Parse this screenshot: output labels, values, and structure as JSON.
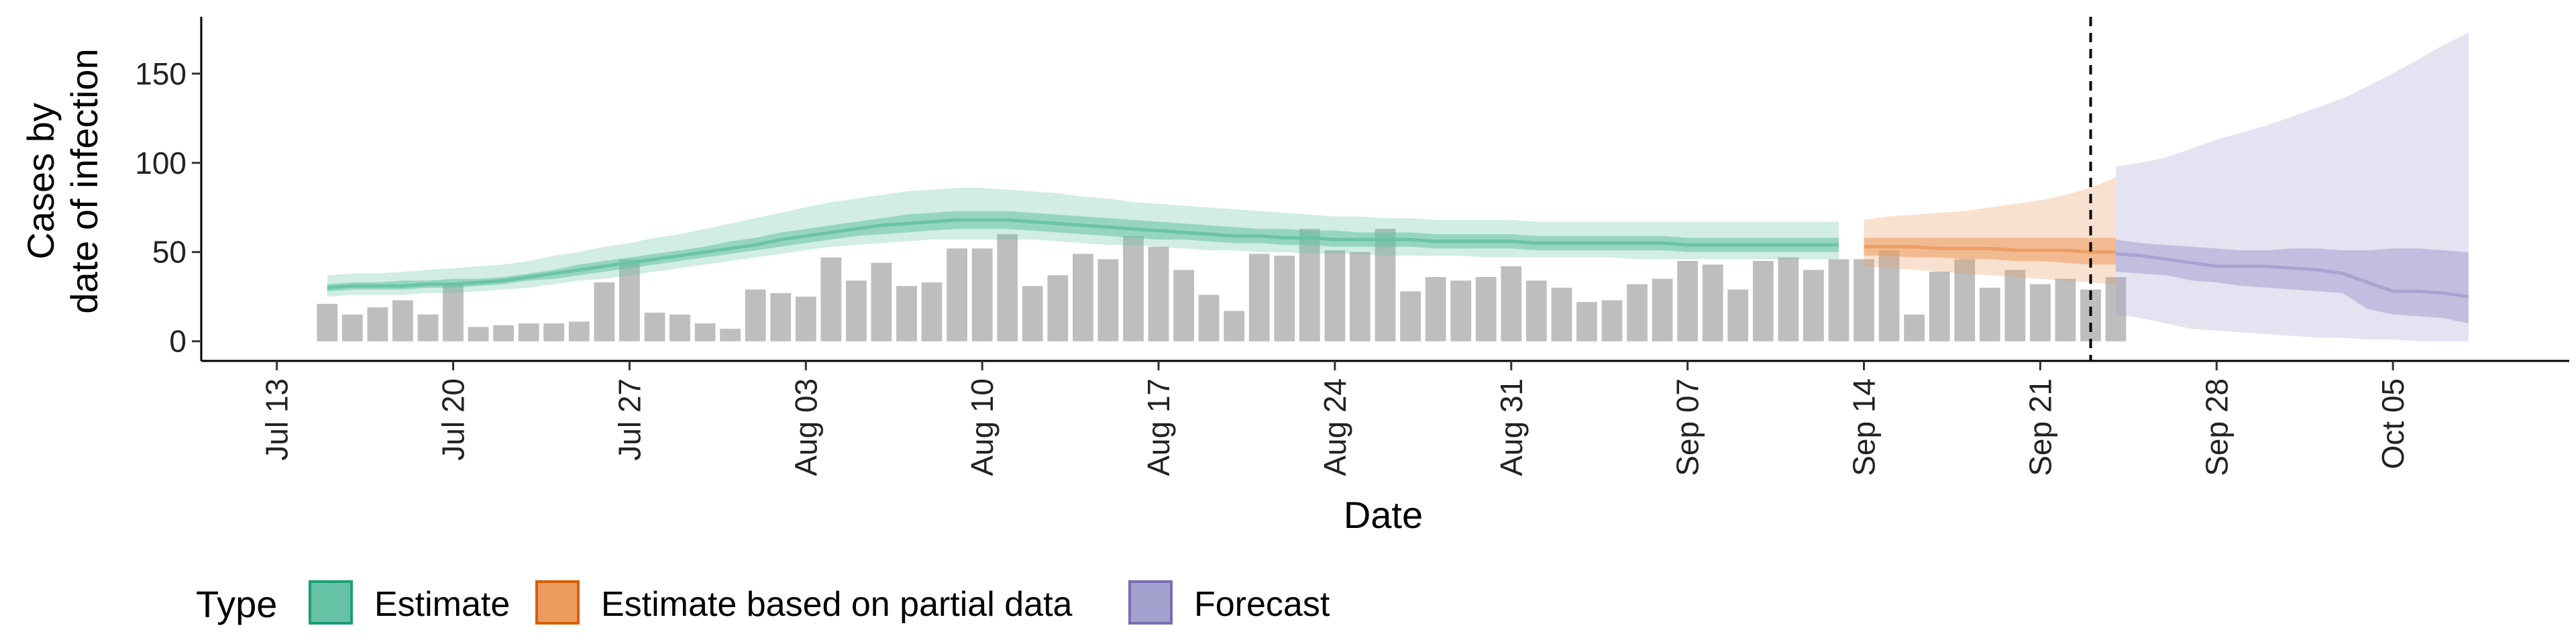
{
  "chart_data": {
    "type": "area",
    "title": "",
    "xlabel": "Date",
    "ylabel_lines": [
      "Cases by",
      "date of infection"
    ],
    "x_range": [
      "2020-07-10",
      "2020-10-12"
    ],
    "ylim": [
      -8,
      180
    ],
    "y_ticks": [
      0,
      50,
      100,
      150
    ],
    "x_ticks": [
      {
        "date": "2020-07-13",
        "label": "Jul 13"
      },
      {
        "date": "2020-07-20",
        "label": "Jul 20"
      },
      {
        "date": "2020-07-27",
        "label": "Jul 27"
      },
      {
        "date": "2020-08-03",
        "label": "Aug 03"
      },
      {
        "date": "2020-08-10",
        "label": "Aug 10"
      },
      {
        "date": "2020-08-17",
        "label": "Aug 17"
      },
      {
        "date": "2020-08-24",
        "label": "Aug 24"
      },
      {
        "date": "2020-08-31",
        "label": "Aug 31"
      },
      {
        "date": "2020-09-07",
        "label": "Sep 07"
      },
      {
        "date": "2020-09-14",
        "label": "Sep 14"
      },
      {
        "date": "2020-09-21",
        "label": "Sep 21"
      },
      {
        "date": "2020-09-28",
        "label": "Sep 28"
      },
      {
        "date": "2020-10-05",
        "label": "Oct 05"
      }
    ],
    "grid": false,
    "vline_date": "2020-09-23",
    "bars": {
      "color": "#bebebe",
      "start_date": "2020-07-15",
      "values": [
        21,
        15,
        19,
        23,
        15,
        32,
        8,
        9,
        10,
        10,
        11,
        33,
        46,
        16,
        15,
        10,
        7,
        29,
        27,
        25,
        47,
        34,
        44,
        31,
        33,
        52,
        52,
        60,
        31,
        37,
        49,
        46,
        59,
        53,
        40,
        26,
        17,
        49,
        48,
        63,
        51,
        50,
        63,
        28,
        36,
        34,
        36,
        42,
        34,
        30,
        22,
        23,
        32,
        35,
        45,
        43,
        29,
        45,
        47,
        40,
        46,
        46,
        51,
        15,
        39,
        46,
        30,
        40,
        32,
        35,
        29,
        36
      ]
    },
    "series": [
      {
        "name": "Estimate",
        "color": "#1b9e77",
        "band_color": "#66c2a4",
        "start_date": "2020-07-15",
        "median": [
          30,
          31,
          31,
          31,
          32,
          32,
          33,
          34,
          36,
          38,
          40,
          42,
          44,
          46,
          48,
          50,
          52,
          54,
          57,
          59,
          61,
          63,
          65,
          66,
          67,
          68,
          68,
          68,
          67,
          66,
          65,
          64,
          63,
          62,
          61,
          60,
          59,
          59,
          58,
          58,
          57,
          57,
          57,
          57,
          56,
          56,
          56,
          56,
          55,
          55,
          55,
          55,
          55,
          55,
          54,
          54,
          54,
          54,
          54,
          54,
          54
        ],
        "inner_lower": [
          28,
          29,
          29,
          29,
          30,
          30,
          31,
          32,
          34,
          35,
          37,
          39,
          41,
          43,
          45,
          47,
          49,
          51,
          53,
          55,
          57,
          59,
          60,
          61,
          62,
          63,
          63,
          63,
          62,
          61,
          60,
          59,
          58,
          57,
          57,
          56,
          55,
          55,
          54,
          54,
          53,
          53,
          53,
          53,
          52,
          52,
          52,
          52,
          51,
          51,
          51,
          51,
          51,
          51,
          50,
          50,
          50,
          50,
          50,
          50,
          50
        ],
        "inner_upper": [
          32,
          33,
          33,
          34,
          34,
          35,
          35,
          36,
          38,
          40,
          43,
          45,
          47,
          49,
          51,
          53,
          56,
          58,
          61,
          63,
          65,
          67,
          69,
          71,
          72,
          73,
          73,
          73,
          72,
          71,
          70,
          69,
          68,
          67,
          66,
          65,
          64,
          63,
          63,
          62,
          62,
          61,
          61,
          61,
          60,
          60,
          60,
          60,
          59,
          59,
          59,
          59,
          59,
          59,
          58,
          58,
          58,
          58,
          58,
          58,
          58
        ],
        "outer_lower": [
          25,
          26,
          26,
          26,
          27,
          27,
          28,
          29,
          30,
          32,
          34,
          35,
          37,
          39,
          41,
          43,
          45,
          47,
          49,
          51,
          53,
          54,
          55,
          56,
          57,
          57,
          57,
          57,
          57,
          56,
          55,
          54,
          54,
          53,
          52,
          51,
          51,
          50,
          50,
          49,
          49,
          49,
          48,
          48,
          48,
          48,
          47,
          47,
          47,
          47,
          47,
          47,
          46,
          46,
          46,
          46,
          46,
          46,
          46,
          46,
          46
        ],
        "outer_upper": [
          37,
          38,
          38,
          39,
          40,
          41,
          42,
          43,
          45,
          48,
          50,
          53,
          55,
          58,
          60,
          63,
          66,
          69,
          72,
          75,
          78,
          80,
          82,
          84,
          85,
          86,
          86,
          85,
          84,
          83,
          81,
          80,
          78,
          77,
          76,
          75,
          74,
          73,
          72,
          71,
          70,
          70,
          69,
          69,
          68,
          68,
          68,
          68,
          67,
          67,
          67,
          67,
          67,
          67,
          67,
          67,
          67,
          67,
          67,
          67,
          67
        ]
      },
      {
        "name": "Estimate based on partial data",
        "color": "#d95f02",
        "band_color": "#ec9b5f",
        "start_date": "2020-09-14",
        "median": [
          53,
          53,
          53,
          52,
          52,
          52,
          51,
          51,
          51,
          50,
          50
        ],
        "inner_lower": [
          48,
          48,
          47,
          47,
          46,
          46,
          45,
          45,
          44,
          43,
          43
        ],
        "inner_upper": [
          58,
          58,
          58,
          58,
          58,
          58,
          58,
          58,
          58,
          58,
          58
        ],
        "outer_lower": [
          42,
          41,
          40,
          39,
          38,
          37,
          36,
          35,
          34,
          33,
          32
        ],
        "outer_upper": [
          68,
          70,
          71,
          72,
          73,
          75,
          77,
          79,
          82,
          86,
          92
        ]
      },
      {
        "name": "Forecast",
        "color": "#7570b3",
        "band_color": "#a5a1cf",
        "start_date": "2020-09-24",
        "median": [
          49,
          48,
          46,
          44,
          42,
          42,
          42,
          41,
          40,
          38,
          33,
          28,
          28,
          27,
          25
        ],
        "inner_lower": [
          39,
          38,
          37,
          34,
          33,
          31,
          30,
          29,
          28,
          27,
          18,
          15,
          14,
          13,
          10
        ],
        "inner_upper": [
          57,
          55,
          54,
          53,
          52,
          51,
          51,
          52,
          52,
          51,
          51,
          52,
          52,
          51,
          50
        ],
        "outer_lower": [
          15,
          13,
          10,
          7,
          6,
          5,
          4,
          3,
          2,
          2,
          1,
          1,
          0,
          0,
          0
        ],
        "outer_upper": [
          98,
          100,
          103,
          108,
          113,
          117,
          121,
          126,
          131,
          136,
          143,
          150,
          158,
          166,
          173
        ]
      }
    ],
    "legend": {
      "title": "Type",
      "position": "bottom-left",
      "items": [
        {
          "label": "Estimate",
          "fill": "#66c2a4",
          "stroke": "#1b9e77"
        },
        {
          "label": "Estimate based on partial data",
          "fill": "#ec9b5f",
          "stroke": "#d95f02"
        },
        {
          "label": "Forecast",
          "fill": "#a5a1cf",
          "stroke": "#7570b3"
        }
      ]
    }
  }
}
